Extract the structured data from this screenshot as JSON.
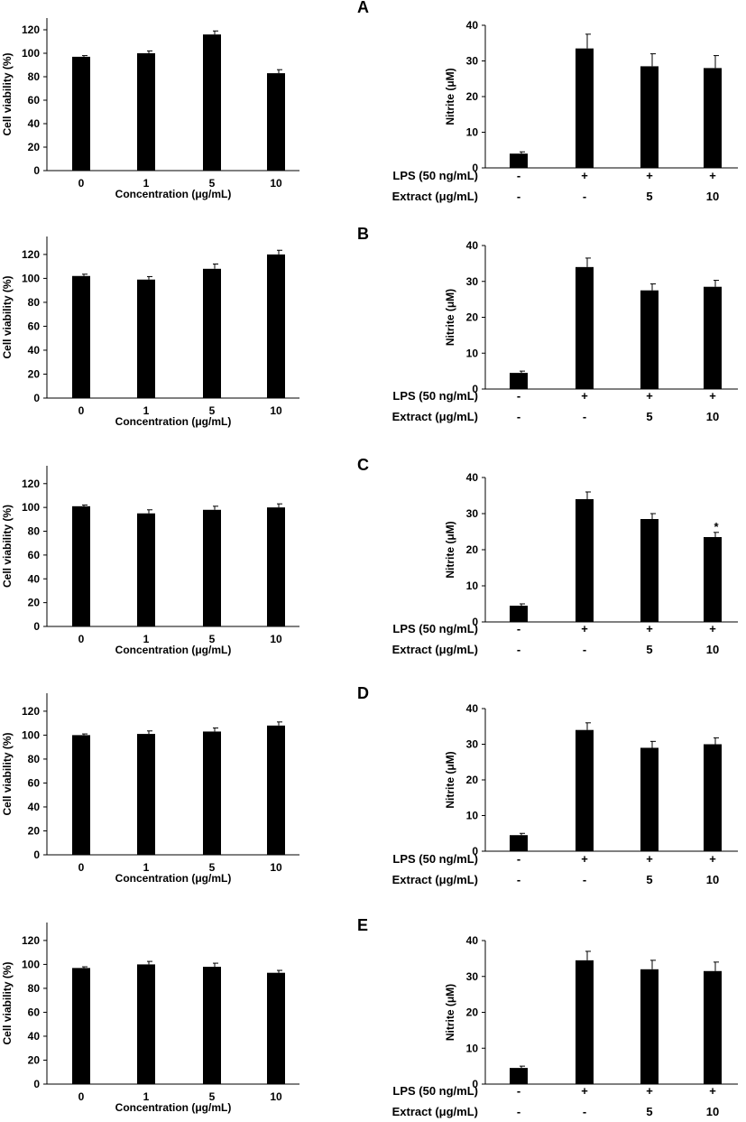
{
  "chart_data": [
    {
      "type": "bar",
      "panel": "",
      "categories": [
        "0",
        "1",
        "5",
        "10"
      ],
      "values": [
        97,
        100,
        116,
        83
      ],
      "errors": [
        1,
        2,
        3,
        3
      ],
      "xlabel": "Concentration (μg/mL)",
      "ylabel": "Cell viability (%)",
      "ylim": [
        0,
        130
      ],
      "yticks": [
        0,
        20,
        40,
        60,
        80,
        100,
        120
      ]
    },
    {
      "type": "bar",
      "panel": "A",
      "categories": [
        "",
        "",
        "",
        ""
      ],
      "values": [
        4,
        33.5,
        28.5,
        28
      ],
      "errors": [
        0.5,
        4,
        3.5,
        3.5
      ],
      "ylabel": "Nitrite (μM)",
      "ylim": [
        0,
        40
      ],
      "yticks": [
        0,
        10,
        20,
        30,
        40
      ],
      "row_labels": [
        "LPS (50 ng/mL)",
        "Extract (μg/mL)"
      ],
      "rows": [
        [
          "-",
          "+",
          "+",
          "+"
        ],
        [
          "-",
          "-",
          "5",
          "10"
        ]
      ],
      "annotations": [
        "",
        "",
        "",
        ""
      ]
    },
    {
      "type": "bar",
      "panel": "",
      "categories": [
        "0",
        "1",
        "5",
        "10"
      ],
      "values": [
        102,
        99,
        108,
        120
      ],
      "errors": [
        1.5,
        2.5,
        4,
        3.5
      ],
      "xlabel": "Concentration (μg/mL)",
      "ylabel": "Cell viability (%)",
      "ylim": [
        0,
        135
      ],
      "yticks": [
        0,
        20,
        40,
        60,
        80,
        100,
        120
      ]
    },
    {
      "type": "bar",
      "panel": "B",
      "categories": [
        "",
        "",
        "",
        ""
      ],
      "values": [
        4.5,
        34,
        27.5,
        28.5
      ],
      "errors": [
        0.5,
        2.5,
        1.8,
        1.8
      ],
      "ylabel": "Nitrite (μM)",
      "ylim": [
        0,
        40
      ],
      "yticks": [
        0,
        10,
        20,
        30,
        40
      ],
      "row_labels": [
        "LPS (50 ng/mL)",
        "Extract (μg/mL)"
      ],
      "rows": [
        [
          "-",
          "+",
          "+",
          "+"
        ],
        [
          "-",
          "-",
          "5",
          "10"
        ]
      ],
      "annotations": [
        "",
        "",
        "",
        ""
      ]
    },
    {
      "type": "bar",
      "panel": "",
      "categories": [
        "0",
        "1",
        "5",
        "10"
      ],
      "values": [
        101,
        95,
        98,
        100
      ],
      "errors": [
        1,
        3,
        3,
        3
      ],
      "xlabel": "Concentration (μg/mL)",
      "ylabel": "Cell viability (%)",
      "ylim": [
        0,
        135
      ],
      "yticks": [
        0,
        20,
        40,
        60,
        80,
        100,
        120
      ]
    },
    {
      "type": "bar",
      "panel": "C",
      "categories": [
        "",
        "",
        "",
        ""
      ],
      "values": [
        4.5,
        34,
        28.5,
        23.5
      ],
      "errors": [
        0.5,
        2,
        1.5,
        1.3
      ],
      "ylabel": "Nitrite (μM)",
      "ylim": [
        0,
        40
      ],
      "yticks": [
        0,
        10,
        20,
        30,
        40
      ],
      "row_labels": [
        "LPS (50 ng/mL)",
        "Extract (μg/mL)"
      ],
      "rows": [
        [
          "-",
          "+",
          "+",
          "+"
        ],
        [
          "-",
          "-",
          "5",
          "10"
        ]
      ],
      "annotations": [
        "",
        "",
        "",
        "*"
      ]
    },
    {
      "type": "bar",
      "panel": "",
      "categories": [
        "0",
        "1",
        "5",
        "10"
      ],
      "values": [
        100,
        101,
        103,
        108
      ],
      "errors": [
        1,
        2.5,
        3,
        3
      ],
      "xlabel": "Concentration (μg/mL)",
      "ylabel": "Cell viability (%)",
      "ylim": [
        0,
        135
      ],
      "yticks": [
        0,
        20,
        40,
        60,
        80,
        100,
        120
      ]
    },
    {
      "type": "bar",
      "panel": "D",
      "categories": [
        "",
        "",
        "",
        ""
      ],
      "values": [
        4.5,
        34,
        29,
        30
      ],
      "errors": [
        0.5,
        2,
        1.8,
        1.8
      ],
      "ylabel": "Nitrite (μM)",
      "ylim": [
        0,
        40
      ],
      "yticks": [
        0,
        10,
        20,
        30,
        40
      ],
      "row_labels": [
        "LPS (50 ng/mL)",
        "Extract (μg/mL)"
      ],
      "rows": [
        [
          "-",
          "+",
          "+",
          "+"
        ],
        [
          "-",
          "-",
          "5",
          "10"
        ]
      ],
      "annotations": [
        "",
        "",
        "",
        ""
      ]
    },
    {
      "type": "bar",
      "panel": "",
      "categories": [
        "0",
        "1",
        "5",
        "10"
      ],
      "values": [
        97,
        100,
        98,
        93
      ],
      "errors": [
        1,
        2.5,
        3,
        2
      ],
      "xlabel": "Concentration (μg/mL)",
      "ylabel": "Cell viability (%)",
      "ylim": [
        0,
        135
      ],
      "yticks": [
        0,
        20,
        40,
        60,
        80,
        100,
        120
      ]
    },
    {
      "type": "bar",
      "panel": "E",
      "categories": [
        "",
        "",
        "",
        ""
      ],
      "values": [
        4.5,
        34.5,
        32,
        31.5
      ],
      "errors": [
        0.5,
        2.5,
        2.5,
        2.5
      ],
      "ylabel": "Nitrite (μM)",
      "ylim": [
        0,
        40
      ],
      "yticks": [
        0,
        10,
        20,
        30,
        40
      ],
      "row_labels": [
        "LPS (50 ng/mL)",
        "Extract (μg/mL)"
      ],
      "rows": [
        [
          "-",
          "+",
          "+",
          "+"
        ],
        [
          "-",
          "-",
          "5",
          "10"
        ]
      ],
      "annotations": [
        "",
        "",
        "",
        ""
      ]
    }
  ]
}
